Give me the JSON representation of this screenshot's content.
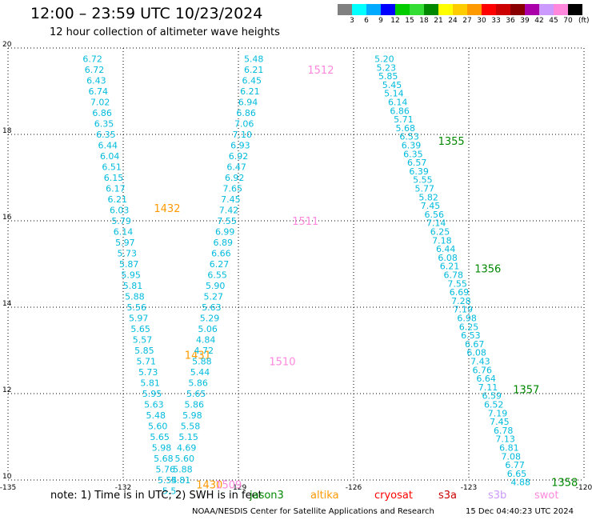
{
  "header": {
    "title": "12:00 – 23:59 UTC 10/23/2024",
    "subtitle": "12 hour collection of altimeter wave heights"
  },
  "colorbar": {
    "labels": [
      "3",
      "6",
      "9",
      "12",
      "15",
      "18",
      "21",
      "24",
      "27",
      "30",
      "33",
      "36",
      "39",
      "42",
      "45",
      "70"
    ],
    "colors": [
      "#808080",
      "#00ffff",
      "#00aaff",
      "#0000ff",
      "#00cc00",
      "#33dd33",
      "#008800",
      "#ffff00",
      "#ffcc00",
      "#ff9900",
      "#ff0000",
      "#cc0000",
      "#880000",
      "#aa00aa",
      "#cc99ff",
      "#ff88dd",
      "#000000"
    ],
    "unit": "(ft)"
  },
  "footer": {
    "note": "note:  1) Time is in UTC;  2) SWH is in feet",
    "legend": [
      {
        "name": "jason3",
        "color": "#008800"
      },
      {
        "name": "altika",
        "color": "#ff9900"
      },
      {
        "name": "cryosat",
        "color": "#ff0000"
      },
      {
        "name": "s3a",
        "color": "#cc0000"
      },
      {
        "name": "s3b",
        "color": "#cc99ff"
      },
      {
        "name": "swot",
        "color": "#ff88dd"
      }
    ],
    "credit": "NOAA/NESDIS Center for Satellite Applications and Research",
    "timestamp": "15 Dec 04:40:23 UTC 2024"
  },
  "chart_data": {
    "type": "scatter",
    "title": "12:00 – 23:59 UTC 10/23/2024",
    "subtitle": "12 hour collection of altimeter wave heights",
    "xlabel": "",
    "ylabel": "",
    "xlim": [
      -135,
      -120
    ],
    "ylim": [
      10,
      20
    ],
    "xticks": [
      "-135",
      "-132",
      "-129",
      "-126",
      "-123",
      "-120"
    ],
    "yticks": [
      "20",
      "18",
      "16",
      "14",
      "12",
      "10"
    ],
    "grid": true,
    "value_color": "#00bbdd",
    "tracks": [
      {
        "points": [
          {
            "lon": -132.8,
            "lat": 19.75,
            "label": "6.72"
          },
          {
            "lon": -132.75,
            "lat": 19.5,
            "label": "6.72"
          },
          {
            "lon": -132.7,
            "lat": 19.25,
            "label": "6.43"
          },
          {
            "lon": -132.65,
            "lat": 19.0,
            "label": "6.74"
          },
          {
            "lon": -132.6,
            "lat": 18.75,
            "label": "7.02"
          },
          {
            "lon": -132.55,
            "lat": 18.5,
            "label": "6.86"
          },
          {
            "lon": -132.5,
            "lat": 18.25,
            "label": "6.35"
          },
          {
            "lon": -132.45,
            "lat": 18.0,
            "label": "6.35"
          },
          {
            "lon": -132.4,
            "lat": 17.75,
            "label": "6.44"
          },
          {
            "lon": -132.35,
            "lat": 17.5,
            "label": "6.04"
          },
          {
            "lon": -132.3,
            "lat": 17.25,
            "label": "6.51"
          },
          {
            "lon": -132.25,
            "lat": 17.0,
            "label": "6.15"
          },
          {
            "lon": -132.2,
            "lat": 16.75,
            "label": "6.17"
          },
          {
            "lon": -132.15,
            "lat": 16.5,
            "label": "6.21"
          },
          {
            "lon": -132.1,
            "lat": 16.25,
            "label": "6.03"
          },
          {
            "lon": -132.05,
            "lat": 16.0,
            "label": "5.79"
          },
          {
            "lon": -132.0,
            "lat": 15.75,
            "label": "6.14"
          },
          {
            "lon": -131.95,
            "lat": 15.5,
            "label": "5.97"
          },
          {
            "lon": -131.9,
            "lat": 15.25,
            "label": "5.73"
          },
          {
            "lon": -131.85,
            "lat": 15.0,
            "label": "5.87"
          },
          {
            "lon": -131.8,
            "lat": 14.75,
            "label": "5.95"
          },
          {
            "lon": -131.75,
            "lat": 14.5,
            "label": "5.81"
          },
          {
            "lon": -131.7,
            "lat": 14.25,
            "label": "5.88"
          },
          {
            "lon": -131.65,
            "lat": 14.0,
            "label": "5.56"
          },
          {
            "lon": -131.6,
            "lat": 13.75,
            "label": "5.97"
          },
          {
            "lon": -131.55,
            "lat": 13.5,
            "label": "5.65"
          },
          {
            "lon": -131.5,
            "lat": 13.25,
            "label": "5.57"
          },
          {
            "lon": -131.45,
            "lat": 13.0,
            "label": "5.85"
          },
          {
            "lon": -131.4,
            "lat": 12.75,
            "label": "5.71"
          },
          {
            "lon": -131.35,
            "lat": 12.5,
            "label": "5.73"
          },
          {
            "lon": -131.3,
            "lat": 12.25,
            "label": "5.81"
          },
          {
            "lon": -131.25,
            "lat": 12.0,
            "label": "5.95"
          },
          {
            "lon": -131.2,
            "lat": 11.75,
            "label": "5.63"
          },
          {
            "lon": -131.15,
            "lat": 11.5,
            "label": "5.48"
          },
          {
            "lon": -131.1,
            "lat": 11.25,
            "label": "5.60"
          },
          {
            "lon": -131.05,
            "lat": 11.0,
            "label": "5.65"
          },
          {
            "lon": -131.0,
            "lat": 10.75,
            "label": "5.98"
          },
          {
            "lon": -130.95,
            "lat": 10.5,
            "label": "5.68"
          },
          {
            "lon": -130.9,
            "lat": 10.25,
            "label": "5.76"
          },
          {
            "lon": -130.85,
            "lat": 10.0,
            "label": "5.54"
          },
          {
            "lon": -130.8,
            "lat": 9.75,
            "label": "5.5"
          }
        ],
        "pass_labels": [
          {
            "lon": -131.2,
            "lat": 16.3,
            "text": "1432",
            "color": "#ff9900"
          },
          {
            "lon": -130.4,
            "lat": 12.9,
            "text": "1431",
            "color": "#ff9900"
          },
          {
            "lon": -130.1,
            "lat": 9.9,
            "text": "1430",
            "color": "#ff9900"
          }
        ]
      },
      {
        "points": [
          {
            "lon": -128.6,
            "lat": 19.75,
            "label": "5.48"
          },
          {
            "lon": -128.6,
            "lat": 19.5,
            "label": "6.21"
          },
          {
            "lon": -128.65,
            "lat": 19.25,
            "label": "6.45"
          },
          {
            "lon": -128.7,
            "lat": 19.0,
            "label": "6.21"
          },
          {
            "lon": -128.75,
            "lat": 18.75,
            "label": "6.94"
          },
          {
            "lon": -128.8,
            "lat": 18.5,
            "label": "6.86"
          },
          {
            "lon": -128.85,
            "lat": 18.25,
            "label": "7.06"
          },
          {
            "lon": -128.9,
            "lat": 18.0,
            "label": "7.10"
          },
          {
            "lon": -128.95,
            "lat": 17.75,
            "label": "6.93"
          },
          {
            "lon": -129.0,
            "lat": 17.5,
            "label": "6.92"
          },
          {
            "lon": -129.05,
            "lat": 17.25,
            "label": "6.47"
          },
          {
            "lon": -129.1,
            "lat": 17.0,
            "label": "6.92"
          },
          {
            "lon": -129.15,
            "lat": 16.75,
            "label": "7.65"
          },
          {
            "lon": -129.2,
            "lat": 16.5,
            "label": "7.45"
          },
          {
            "lon": -129.25,
            "lat": 16.25,
            "label": "7.42"
          },
          {
            "lon": -129.3,
            "lat": 16.0,
            "label": "7.55"
          },
          {
            "lon": -129.35,
            "lat": 15.75,
            "label": "6.99"
          },
          {
            "lon": -129.4,
            "lat": 15.5,
            "label": "6.89"
          },
          {
            "lon": -129.45,
            "lat": 15.25,
            "label": "6.66"
          },
          {
            "lon": -129.5,
            "lat": 15.0,
            "label": "6.27"
          },
          {
            "lon": -129.55,
            "lat": 14.75,
            "label": "6.55"
          },
          {
            "lon": -129.6,
            "lat": 14.5,
            "label": "5.90"
          },
          {
            "lon": -129.65,
            "lat": 14.25,
            "label": "5.27"
          },
          {
            "lon": -129.7,
            "lat": 14.0,
            "label": "5.63"
          },
          {
            "lon": -129.75,
            "lat": 13.75,
            "label": "5.29"
          },
          {
            "lon": -129.8,
            "lat": 13.5,
            "label": "5.06"
          },
          {
            "lon": -129.85,
            "lat": 13.25,
            "label": "4.84"
          },
          {
            "lon": -129.9,
            "lat": 13.0,
            "label": "4.72"
          },
          {
            "lon": -129.95,
            "lat": 12.75,
            "label": "5.88"
          },
          {
            "lon": -130.0,
            "lat": 12.5,
            "label": "5.44"
          },
          {
            "lon": -130.05,
            "lat": 12.25,
            "label": "5.86"
          },
          {
            "lon": -130.1,
            "lat": 12.0,
            "label": "5.65"
          },
          {
            "lon": -130.15,
            "lat": 11.75,
            "label": "5.86"
          },
          {
            "lon": -130.2,
            "lat": 11.5,
            "label": "5.98"
          },
          {
            "lon": -130.25,
            "lat": 11.25,
            "label": "5.58"
          },
          {
            "lon": -130.3,
            "lat": 11.0,
            "label": "5.15"
          },
          {
            "lon": -130.35,
            "lat": 10.75,
            "label": "4.69"
          },
          {
            "lon": -130.4,
            "lat": 10.5,
            "label": "5.60"
          },
          {
            "lon": -130.45,
            "lat": 10.25,
            "label": "5.88"
          },
          {
            "lon": -130.5,
            "lat": 10.0,
            "label": "5.81"
          }
        ],
        "pass_labels": [
          {
            "lon": -127.2,
            "lat": 19.5,
            "text": "1512",
            "color": "#ff88dd"
          },
          {
            "lon": -127.6,
            "lat": 16.0,
            "text": "1511",
            "color": "#ff88dd"
          },
          {
            "lon": -128.2,
            "lat": 12.75,
            "text": "1510",
            "color": "#ff88dd"
          },
          {
            "lon": -129.6,
            "lat": 9.9,
            "text": "1509",
            "color": "#ff88dd"
          }
        ]
      },
      {
        "points": [
          {
            "lon": -125.2,
            "lat": 19.75,
            "label": "5.20"
          },
          {
            "lon": -125.15,
            "lat": 19.55,
            "label": "5.23"
          },
          {
            "lon": -125.1,
            "lat": 19.35,
            "label": "5.85"
          },
          {
            "lon": -125.0,
            "lat": 19.15,
            "label": "5.45"
          },
          {
            "lon": -124.95,
            "lat": 18.95,
            "label": "5.14"
          },
          {
            "lon": -124.85,
            "lat": 18.75,
            "label": "6.14"
          },
          {
            "lon": -124.8,
            "lat": 18.55,
            "label": "6.86"
          },
          {
            "lon": -124.7,
            "lat": 18.35,
            "label": "5.71"
          },
          {
            "lon": -124.65,
            "lat": 18.15,
            "label": "5.68"
          },
          {
            "lon": -124.55,
            "lat": 17.95,
            "label": "6.53"
          },
          {
            "lon": -124.5,
            "lat": 17.75,
            "label": "6.39"
          },
          {
            "lon": -124.45,
            "lat": 17.55,
            "label": "6.35"
          },
          {
            "lon": -124.35,
            "lat": 17.35,
            "label": "6.57"
          },
          {
            "lon": -124.3,
            "lat": 17.15,
            "label": "6.39"
          },
          {
            "lon": -124.2,
            "lat": 16.95,
            "label": "5.55"
          },
          {
            "lon": -124.15,
            "lat": 16.75,
            "label": "5.77"
          },
          {
            "lon": -124.05,
            "lat": 16.55,
            "label": "5.82"
          },
          {
            "lon": -124.0,
            "lat": 16.35,
            "label": "7.45"
          },
          {
            "lon": -123.9,
            "lat": 16.15,
            "label": "6.56"
          },
          {
            "lon": -123.85,
            "lat": 15.95,
            "label": "7.14"
          },
          {
            "lon": -123.75,
            "lat": 15.75,
            "label": "6.25"
          },
          {
            "lon": -123.7,
            "lat": 15.55,
            "label": "7.18"
          },
          {
            "lon": -123.6,
            "lat": 15.35,
            "label": "6.44"
          },
          {
            "lon": -123.55,
            "lat": 15.15,
            "label": "6.08"
          },
          {
            "lon": -123.5,
            "lat": 14.95,
            "label": "6.21"
          },
          {
            "lon": -123.4,
            "lat": 14.75,
            "label": "6.78"
          },
          {
            "lon": -123.3,
            "lat": 14.55,
            "label": "7.55"
          },
          {
            "lon": -123.25,
            "lat": 14.35,
            "label": "6.69"
          },
          {
            "lon": -123.2,
            "lat": 14.15,
            "label": "7.28"
          },
          {
            "lon": -123.15,
            "lat": 13.95,
            "label": "7.19"
          },
          {
            "lon": -123.05,
            "lat": 13.75,
            "label": "6.98"
          },
          {
            "lon": -123.0,
            "lat": 13.55,
            "label": "6.25"
          },
          {
            "lon": -122.95,
            "lat": 13.35,
            "label": "6.53"
          },
          {
            "lon": -122.85,
            "lat": 13.15,
            "label": "6.67"
          },
          {
            "lon": -122.8,
            "lat": 12.95,
            "label": "6.08"
          },
          {
            "lon": -122.7,
            "lat": 12.75,
            "label": "7.43"
          },
          {
            "lon": -122.65,
            "lat": 12.55,
            "label": "6.76"
          },
          {
            "lon": -122.55,
            "lat": 12.35,
            "label": "6.64"
          },
          {
            "lon": -122.5,
            "lat": 12.15,
            "label": "7.11"
          },
          {
            "lon": -122.4,
            "lat": 11.95,
            "label": "6.59"
          },
          {
            "lon": -122.35,
            "lat": 11.75,
            "label": "6.52"
          },
          {
            "lon": -122.25,
            "lat": 11.55,
            "label": "7.19"
          },
          {
            "lon": -122.2,
            "lat": 11.35,
            "label": "7.45"
          },
          {
            "lon": -122.1,
            "lat": 11.15,
            "label": "6.78"
          },
          {
            "lon": -122.05,
            "lat": 10.95,
            "label": "7.13"
          },
          {
            "lon": -121.95,
            "lat": 10.75,
            "label": "6.81"
          },
          {
            "lon": -121.9,
            "lat": 10.55,
            "label": "7.08"
          },
          {
            "lon": -121.8,
            "lat": 10.35,
            "label": "6.77"
          },
          {
            "lon": -121.75,
            "lat": 10.15,
            "label": "6.65"
          },
          {
            "lon": -121.65,
            "lat": 9.95,
            "label": "4.88"
          }
        ],
        "pass_labels": [
          {
            "lon": -123.8,
            "lat": 17.85,
            "text": "1355",
            "color": "#008800"
          },
          {
            "lon": -122.85,
            "lat": 14.9,
            "text": "1356",
            "color": "#008800"
          },
          {
            "lon": -121.85,
            "lat": 12.1,
            "text": "1357",
            "color": "#008800"
          },
          {
            "lon": -120.85,
            "lat": 9.95,
            "text": "1358",
            "color": "#008800"
          }
        ]
      }
    ]
  }
}
